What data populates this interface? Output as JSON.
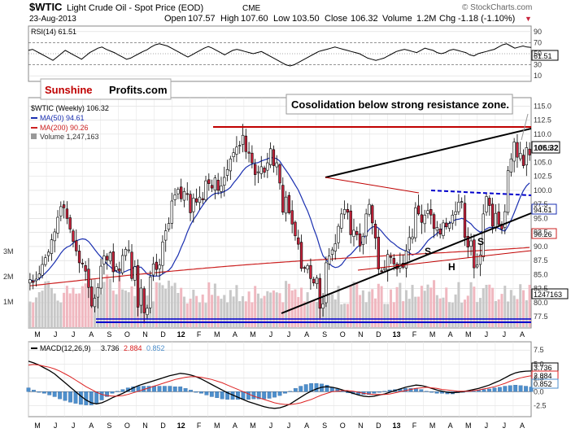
{
  "header": {
    "symbol": "$WTIC",
    "name": "Light Crude Oil - Spot Price (EOD)",
    "exchange": "CME",
    "date": "23-Aug-2013",
    "watermark": "© StockCharts.com",
    "open_label": "Open",
    "open": "107.57",
    "high_label": "High",
    "high": "107.60",
    "low_label": "Low",
    "low": "103.50",
    "close_label": "Close",
    "close": "106.32",
    "volume_label": "Volume",
    "volume": "1.2M",
    "chg_label": "Chg",
    "chg": "-1.18 (-1.10%)",
    "down_marker": "▼"
  },
  "branding": {
    "word1": "Sunshine",
    "word2": "Profits.com"
  },
  "annotation": "Cosolidation below strong resistance zone.",
  "months": [
    "M",
    "J",
    "J",
    "A",
    "S",
    "O",
    "N",
    "D",
    "12",
    "F",
    "M",
    "A",
    "M",
    "J",
    "J",
    "A",
    "S",
    "O",
    "N",
    "D",
    "13",
    "F",
    "M",
    "A",
    "M",
    "J",
    "J",
    "A"
  ],
  "colors": {
    "up": "#ffffff",
    "down": "#c8233c",
    "ma50": "#1a2fb0",
    "ma200": "#cc2222",
    "resistance": "#c00000",
    "support": "#0000cc",
    "macd": "#000000",
    "signal": "#dd2222",
    "hist": "#4d8fcc",
    "grid": "#d8d8d8",
    "rsi": "#000000"
  },
  "chart_data": [
    {
      "type": "line",
      "name": "rsi_panel",
      "title": "RSI(14)",
      "label": "RSI(14) 61.51",
      "last_value": "61.51",
      "y_ticks": [
        "90",
        "70",
        "50",
        "30",
        "10"
      ],
      "ylim": [
        0,
        100
      ],
      "values": [
        56,
        58,
        54,
        50,
        46,
        42,
        38,
        44,
        50,
        56,
        52,
        48,
        44,
        40,
        46,
        52,
        56,
        60,
        62,
        58,
        55,
        52,
        48,
        44,
        40,
        42,
        46,
        50,
        54,
        57,
        62,
        66,
        68,
        66,
        64,
        60,
        56,
        52,
        48,
        44,
        48,
        52,
        56,
        60,
        63,
        60,
        56,
        52,
        48,
        52,
        56,
        58,
        56,
        54,
        52,
        50,
        52,
        54,
        50,
        46,
        42,
        38,
        34,
        30,
        28,
        30,
        34,
        38,
        42,
        46,
        50,
        54,
        56,
        58,
        60,
        62,
        60,
        58,
        56,
        54,
        52,
        50,
        46,
        42,
        40,
        38,
        40,
        42,
        46,
        50,
        54,
        56,
        58,
        56,
        54,
        52,
        56,
        60,
        58,
        56,
        52,
        50,
        52,
        56,
        58,
        56,
        54,
        52,
        48,
        46,
        50,
        52,
        54,
        56,
        58,
        62,
        66,
        68,
        64,
        60,
        62,
        64,
        62,
        61.51
      ]
    },
    {
      "type": "candlestick",
      "name": "price_panel",
      "title": "$WTIC (Weekly) 106.32",
      "y_ticks": [
        "115.0",
        "112.5",
        "110.0",
        "107.5",
        "105.0",
        "102.5",
        "100.0",
        "97.5",
        "95.0",
        "92.5",
        "90.0",
        "87.5",
        "85.0",
        "82.5",
        "80.0",
        "77.5"
      ],
      "ylim": [
        75.5,
        116.5
      ],
      "last_value": "106.32",
      "ma50_label": "MA(50) 94.61",
      "ma50_value": "94.61",
      "ma200_label": "MA(200) 90.26",
      "ma200_value": "90.26",
      "volume_label": "Volume 1,247,163",
      "volume_value": "1247163",
      "volume_ticks": [
        "3M",
        "2M",
        "1M"
      ],
      "close": [
        84.1,
        83.6,
        84.2,
        85.1,
        86.8,
        88.0,
        89.0,
        91.2,
        92.6,
        95.2,
        97.1,
        96.9,
        95.0,
        93.1,
        90.9,
        89.2,
        87.1,
        86.9,
        85.6,
        82.7,
        79.4,
        80.8,
        82.7,
        86.5,
        88.3,
        87.6,
        88.9,
        85.5,
        86.4,
        85.6,
        88.4,
        89.5,
        89.4,
        84.3,
        86.4,
        79.2,
        82.6,
        78.2,
        79.0,
        84.6,
        86.9,
        85.9,
        86.7,
        90.8,
        92.8,
        94.1,
        98.1,
        99.2,
        100.2,
        98.5,
        99.8,
        99.4,
        96.0,
        98.6,
        97.9,
        98.8,
        98.3,
        101.7,
        101.2,
        100.4,
        102.2,
        100.0,
        100.8,
        102.3,
        103.7,
        105.6,
        106.7,
        107.7,
        108.0,
        109.8,
        106.9,
        106.6,
        104.9,
        102.8,
        103.3,
        104.2,
        103.2,
        104.9,
        107.4,
        104.4,
        104.9,
        101.3,
        96.1,
        98.8,
        96.0,
        94.0,
        91.9,
        90.4,
        86.1,
        86.1,
        86.6,
        84.3,
        83.5,
        84.4,
        79.0,
        79.8,
        87.1,
        88.3,
        89.4,
        90.5,
        93.6,
        95.8,
        96.6,
        96.1,
        92.1,
        92.9,
        92.1,
        90.1,
        91.8,
        95.8,
        97.5,
        94.2,
        91.5,
        86.0,
        85.6,
        86.1,
        88.6,
        88.2,
        86.9,
        86.0,
        86.9,
        86.3,
        89.2,
        91.6,
        91.7,
        96.9,
        95.8,
        94.3,
        95.6,
        96.4,
        95.6,
        93.2,
        93.4,
        92.2,
        94.2,
        93.5,
        94.1,
        95.6,
        96.2,
        97.9,
        98.0,
        91.6,
        89.9,
        91.0,
        86.2,
        86.7,
        88.5,
        95.8,
        98.9,
        97.3,
        93.6,
        95.9,
        93.9,
        93.1,
        96.2,
        103.5,
        105.6,
        108.6,
        105.9,
        106.6,
        104.4,
        107.6,
        106.3
      ],
      "resistance_level": "110.5"
    },
    {
      "type": "line",
      "name": "macd_panel",
      "title": "MACD(12,26,9)",
      "macd_label": "MACD(12,26,9)",
      "macd_value": "3.736",
      "signal_value": "2.884",
      "hist_value": "0.852",
      "y_ticks": [
        "7.5",
        "5.0",
        "2.5",
        "0.0",
        "-2.5"
      ],
      "ylim": [
        -4.5,
        9.0
      ],
      "macd": [
        5.5,
        5.2,
        4.8,
        4.3,
        3.8,
        3.2,
        2.4,
        1.6,
        0.8,
        0.0,
        -0.8,
        -1.5,
        -2.0,
        -2.2,
        -2.0,
        -1.6,
        -1.1,
        -0.7,
        -0.3,
        0.2,
        0.7,
        1.1,
        1.4,
        1.7,
        2.0,
        2.3,
        2.6,
        2.9,
        3.1,
        3.3,
        3.2,
        3.0,
        2.7,
        2.3,
        1.8,
        1.3,
        0.8,
        0.3,
        -0.2,
        -0.6,
        -1.0,
        -1.4,
        -1.8,
        -2.1,
        -2.4,
        -2.7,
        -2.9,
        -3.0,
        -2.9,
        -2.6,
        -2.2,
        -1.6,
        -1.0,
        -0.4,
        0.1,
        0.5,
        0.8,
        0.9,
        0.8,
        0.6,
        0.3,
        0.0,
        -0.3,
        -0.6,
        -0.8,
        -0.9,
        -0.8,
        -0.6,
        -0.4,
        -0.1,
        0.2,
        0.5,
        0.8,
        1.0,
        1.2,
        1.1,
        0.9,
        0.6,
        0.3,
        0.1,
        -0.1,
        -0.2,
        -0.1,
        0.0,
        0.2,
        0.4,
        0.6,
        0.9,
        1.2,
        1.6,
        2.0,
        2.5,
        3.0,
        3.4,
        3.6,
        3.7,
        3.736
      ],
      "signal": [
        4.8,
        4.9,
        4.8,
        4.6,
        4.4,
        4.1,
        3.7,
        3.2,
        2.7,
        2.1,
        1.5,
        0.9,
        0.4,
        -0.1,
        -0.5,
        -0.7,
        -0.8,
        -0.8,
        -0.7,
        -0.5,
        -0.2,
        0.1,
        0.4,
        0.7,
        1.0,
        1.3,
        1.6,
        1.9,
        2.2,
        2.4,
        2.6,
        2.7,
        2.7,
        2.6,
        2.4,
        2.2,
        1.9,
        1.6,
        1.2,
        0.8,
        0.4,
        0.0,
        -0.4,
        -0.8,
        -1.1,
        -1.4,
        -1.7,
        -2.0,
        -2.2,
        -2.3,
        -2.3,
        -2.2,
        -2.0,
        -1.7,
        -1.4,
        -1.0,
        -0.6,
        -0.3,
        0.0,
        0.1,
        0.2,
        0.2,
        0.1,
        -0.1,
        -0.3,
        -0.4,
        -0.5,
        -0.5,
        -0.5,
        -0.4,
        -0.2,
        0.0,
        0.2,
        0.4,
        0.6,
        0.7,
        0.8,
        0.7,
        0.6,
        0.4,
        0.3,
        0.2,
        0.1,
        0.1,
        0.1,
        0.2,
        0.3,
        0.5,
        0.7,
        0.9,
        1.2,
        1.5,
        1.9,
        2.2,
        2.5,
        2.7,
        2.884
      ]
    }
  ]
}
